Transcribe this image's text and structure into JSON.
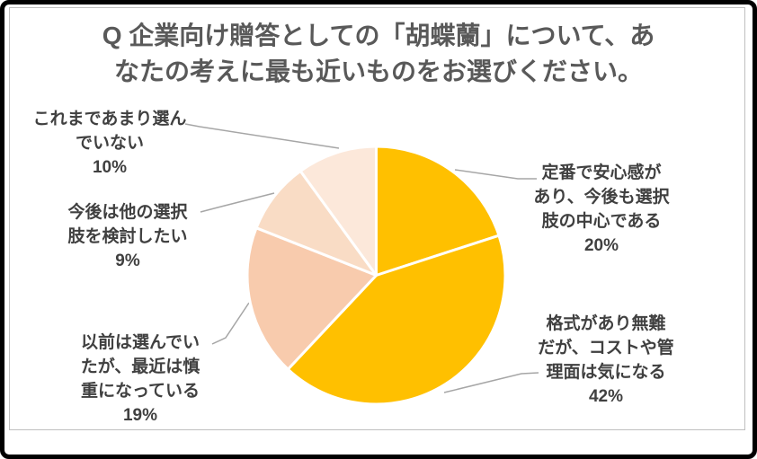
{
  "frame": {
    "background": "#FFFFFF",
    "outer_border_color": "#000000",
    "chart_border_color": "#BFBFBF"
  },
  "chart": {
    "title_lines": [
      "Q 企業向け贈答としての「胡蝶蘭」について、あ",
      "なたの考えに最も近いものをお選びください。"
    ],
    "title_color": "#595959",
    "label_color": "#404040",
    "leader_line_color": "#A6A6A6",
    "labels": [
      {
        "id": "not-chosen",
        "lines": [
          "これまであまり選ん",
          "でいない",
          "10%"
        ]
      },
      {
        "id": "consider-others",
        "lines": [
          "今後は他の選択",
          "肢を検討したい",
          "9%"
        ]
      },
      {
        "id": "cautious-now",
        "lines": [
          "以前は選んでい",
          "たが、最近は慎",
          "重になっている",
          "19%"
        ]
      },
      {
        "id": "standard-choice",
        "lines": [
          "定番で安心感が",
          "あり、今後も選択",
          "肢の中心である",
          "20%"
        ]
      },
      {
        "id": "formal-but-cost",
        "lines": [
          "格式があり無難",
          "だが、コストや管",
          "理面は気になる",
          "42%"
        ]
      }
    ]
  },
  "chart_data": {
    "type": "pie",
    "title": "Q 企業向け贈答としての「胡蝶蘭」について、あなたの考えに最も近いものをお選びください。",
    "unit": "%",
    "start_angle_deg_from_top": 0,
    "direction": "clockwise",
    "legend": "none",
    "data_labels": "outside-with-leader-lines",
    "slices": [
      {
        "label": "定番で安心感があり、今後も選択肢の中心である",
        "value": 20,
        "color": "#FFC000"
      },
      {
        "label": "格式があり無難だが、コストや管理面は気になる",
        "value": 42,
        "color": "#FFC000"
      },
      {
        "label": "以前は選んでいたが、最近は慎重になっている",
        "value": 19,
        "color": "#F8CBAD"
      },
      {
        "label": "今後は他の選択肢を検討したい",
        "value": 9,
        "color": "#F9DCC5"
      },
      {
        "label": "これまであまり選んでいない",
        "value": 10,
        "color": "#FCE8DA"
      }
    ]
  }
}
